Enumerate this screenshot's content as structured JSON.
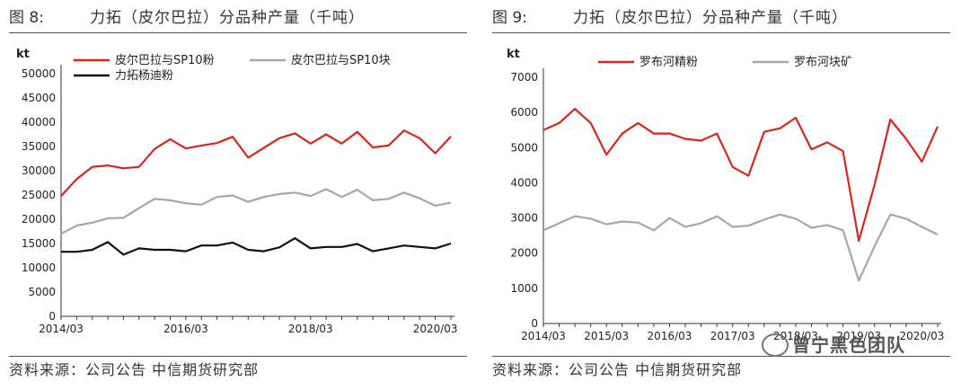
{
  "figures": [
    {
      "number": "图 8:",
      "title": "力拓（皮尔巴拉）分品种产量（千吨）",
      "source": "资料来源：公司公告  中信期货研究部"
    },
    {
      "number": "图 9:",
      "title": "力拓（皮尔巴拉）分品种产量（千吨）",
      "source": "资料来源：公司公告  中信期货研究部"
    }
  ],
  "watermark": {
    "text": "曾宁黑色团队",
    "icon": "wechat-icon"
  },
  "chart_data": [
    {
      "type": "line",
      "ylabel": "kt",
      "ylim": [
        0,
        50000
      ],
      "yticks": [
        0,
        5000,
        10000,
        15000,
        20000,
        25000,
        30000,
        35000,
        40000,
        45000,
        50000
      ],
      "xticks": [
        "2014/03",
        "2016/03",
        "2018/03",
        "2020/03"
      ],
      "x": [
        "2014/03",
        "2014/06",
        "2014/09",
        "2014/12",
        "2015/03",
        "2015/06",
        "2015/09",
        "2015/12",
        "2016/03",
        "2016/06",
        "2016/09",
        "2016/12",
        "2017/03",
        "2017/06",
        "2017/09",
        "2017/12",
        "2018/03",
        "2018/06",
        "2018/09",
        "2018/12",
        "2019/03",
        "2019/06",
        "2019/09",
        "2019/12",
        "2020/03",
        "2020/06"
      ],
      "legend_position": "top-left",
      "series": [
        {
          "name": "皮尔巴拉与SP10粉",
          "color": "#d7261e",
          "values": [
            24800,
            28300,
            30800,
            31100,
            30500,
            30800,
            34500,
            36500,
            34600,
            35200,
            35700,
            37000,
            32700,
            34700,
            36700,
            37700,
            35600,
            37500,
            35600,
            38000,
            34800,
            35200,
            38300,
            36700,
            33600,
            37100
          ]
        },
        {
          "name": "皮尔巴拉与SP10块",
          "color": "#a6a6a6",
          "values": [
            17000,
            18700,
            19300,
            20200,
            20300,
            22300,
            24200,
            23900,
            23300,
            23000,
            24600,
            24900,
            23600,
            24600,
            25200,
            25500,
            24800,
            26200,
            24600,
            26100,
            23900,
            24200,
            25500,
            24300,
            22800,
            23400
          ]
        },
        {
          "name": "力拓杨迪粉",
          "color": "#111111",
          "values": [
            13300,
            13300,
            13700,
            15300,
            12700,
            14000,
            13700,
            13700,
            13400,
            14600,
            14600,
            15200,
            13700,
            13400,
            14200,
            16100,
            14000,
            14300,
            14300,
            14900,
            13400,
            14000,
            14600,
            14300,
            14000,
            15000
          ]
        }
      ]
    },
    {
      "type": "line",
      "ylabel": "kt",
      "ylim": [
        0,
        7000
      ],
      "yticks": [
        0,
        1000,
        2000,
        3000,
        4000,
        5000,
        6000,
        7000
      ],
      "xticks": [
        "2014/03",
        "2015/03",
        "2016/03",
        "2017/03",
        "2018/03",
        "2019/03",
        "2020/03"
      ],
      "x": [
        "2014/03",
        "2014/06",
        "2014/09",
        "2014/12",
        "2015/03",
        "2015/06",
        "2015/09",
        "2015/12",
        "2016/03",
        "2016/06",
        "2016/09",
        "2016/12",
        "2017/03",
        "2017/06",
        "2017/09",
        "2017/12",
        "2018/03",
        "2018/06",
        "2018/09",
        "2018/12",
        "2019/03",
        "2019/06",
        "2019/09",
        "2019/12",
        "2020/03",
        "2020/06"
      ],
      "legend_position": "top",
      "series": [
        {
          "name": "罗布河精粉",
          "color": "#d7261e",
          "values": [
            5500,
            5700,
            6100,
            5700,
            4800,
            5400,
            5700,
            5400,
            5400,
            5250,
            5200,
            5400,
            4450,
            4200,
            5450,
            5550,
            5850,
            4950,
            5150,
            4900,
            2350,
            3950,
            5800,
            5250,
            4600,
            5600
          ]
        },
        {
          "name": "罗布河块矿",
          "color": "#a6a6a6",
          "values": [
            2650,
            2850,
            3050,
            2980,
            2820,
            2900,
            2870,
            2650,
            3000,
            2750,
            2850,
            3050,
            2750,
            2780,
            2950,
            3100,
            2980,
            2720,
            2800,
            2650,
            1220,
            2200,
            3100,
            2980,
            2750,
            2530
          ]
        }
      ]
    }
  ]
}
